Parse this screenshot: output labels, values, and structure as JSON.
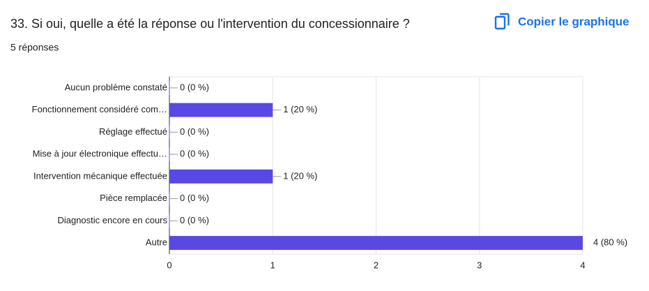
{
  "title": "33. Si oui, quelle a été la réponse ou l'intervention du concessionnaire ?",
  "subtitle": "5 réponses",
  "copy_button": "Copier le graphique",
  "chart_data": {
    "type": "bar",
    "orientation": "horizontal",
    "categories": [
      "Aucun problème constaté",
      "Fonctionnement considéré com…",
      "Réglage effectué",
      "Mise à jour électronique effectu…",
      "Intervention mécanique effectuée",
      "Pièce remplacée",
      "Diagnostic encore en cours",
      "Autre"
    ],
    "values": [
      0,
      1,
      0,
      0,
      1,
      0,
      0,
      4
    ],
    "value_labels": [
      "0 (0 %)",
      "1 (20 %)",
      "0 (0 %)",
      "0 (0 %)",
      "1 (20 %)",
      "0 (0 %)",
      "0 (0 %)",
      "4 (80 %)"
    ],
    "color": "#5a48e4",
    "xlim": [
      0,
      4
    ],
    "xticks": [
      0,
      1,
      2,
      3,
      4
    ],
    "grid": true
  }
}
